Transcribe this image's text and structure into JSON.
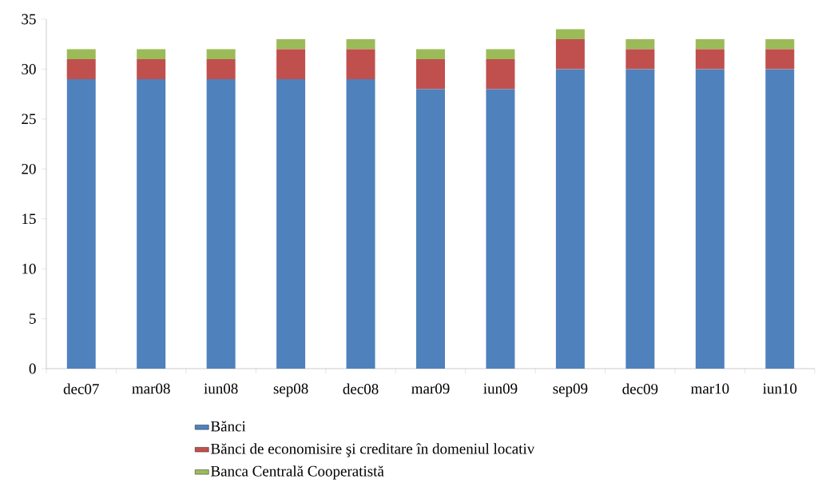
{
  "chart_data": {
    "type": "bar",
    "stacked": true,
    "categories": [
      "dec07",
      "mar08",
      "iun08",
      "sep08",
      "dec08",
      "mar09",
      "iun09",
      "sep09",
      "dec09",
      "mar10",
      "iun10"
    ],
    "series": [
      {
        "name": "Bănci",
        "color": "#4f81bd",
        "values": [
          29,
          29,
          29,
          29,
          29,
          28,
          28,
          30,
          30,
          30,
          30
        ]
      },
      {
        "name": "Bănci de economisire şi creditare în domeniul locativ",
        "color": "#c0504d",
        "values": [
          2,
          2,
          2,
          3,
          3,
          3,
          3,
          3,
          2,
          2,
          2
        ]
      },
      {
        "name": "Banca Centrală Cooperatistă",
        "color": "#9bbb59",
        "values": [
          1,
          1,
          1,
          1,
          1,
          1,
          1,
          1,
          1,
          1,
          1
        ]
      }
    ],
    "ylim": [
      0,
      35
    ],
    "yticks": [
      0,
      5,
      10,
      15,
      20,
      25,
      30,
      35
    ],
    "grid": false,
    "legend": "bottom"
  }
}
